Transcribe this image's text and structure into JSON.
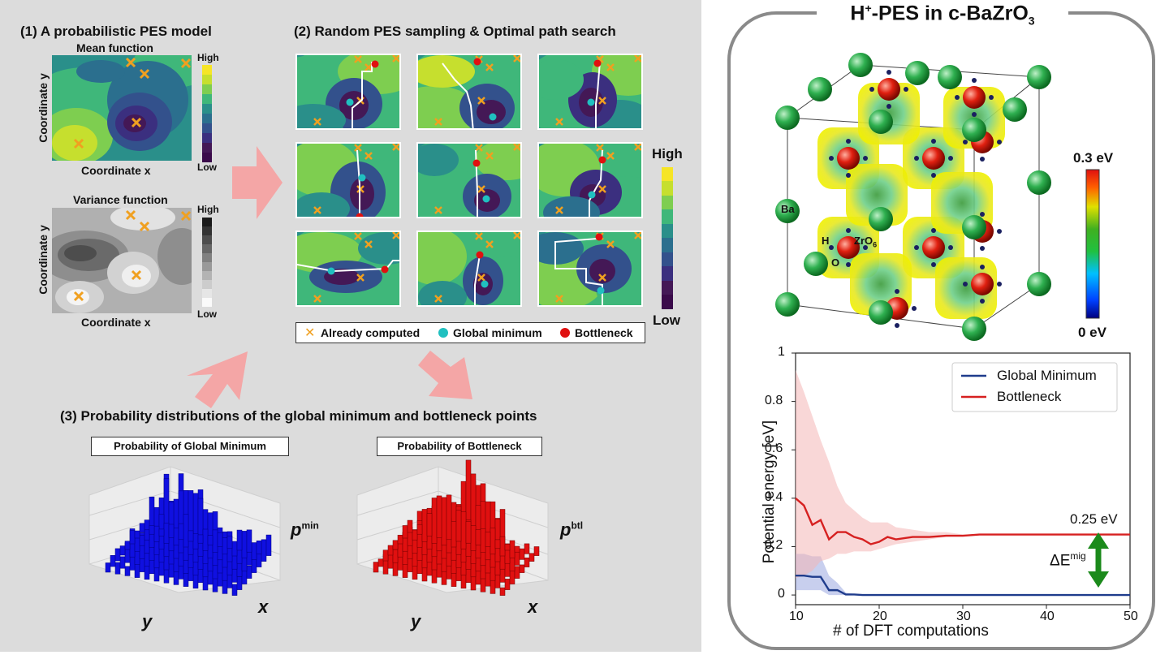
{
  "panel1": {
    "heading": "(1) A probabilistic PES model",
    "mean": {
      "title": "Mean function",
      "xlabel": "Coordinate x",
      "ylabel": "Coordinate y",
      "cb_high": "High",
      "cb_low": "Low"
    },
    "variance": {
      "title": "Variance function",
      "xlabel": "Coordinate x",
      "ylabel": "Coordinate y",
      "cb_high": "High",
      "cb_low": "Low"
    }
  },
  "panel2": {
    "heading": "(2) Random PES sampling & Optimal path search",
    "cb_high": "High",
    "cb_low": "Low",
    "legend": {
      "computed": "Already computed",
      "global_min": "Global minimum",
      "bottleneck": "Bottleneck"
    }
  },
  "panel3": {
    "heading": "(3) Probability distributions of the global minimum and bottleneck points",
    "gm_title": "Probability of Global Minimum",
    "bn_title": "Probability of Bottleneck",
    "gm_axis": {
      "x": "x",
      "y": "y",
      "z_base": "p",
      "z_sup": "min"
    },
    "bn_axis": {
      "x": "x",
      "y": "y",
      "z_base": "p",
      "z_sup": "btl"
    }
  },
  "right": {
    "title_main": "H",
    "title_sup": "+",
    "title_mid": "-PES in c-BaZrO",
    "title_sub": "3",
    "cs_high": "0.3 eV",
    "cs_low": "0 eV",
    "labels": {
      "ba": "Ba",
      "h": "H",
      "zro": "ZrO",
      "zro_sub": "6",
      "o": "O"
    }
  },
  "chart_data": {
    "type": "line",
    "title": "",
    "xlabel": "# of DFT computations",
    "ylabel": "Potential energy [eV]",
    "xlim": [
      10,
      50
    ],
    "ylim": [
      -0.04,
      1.0
    ],
    "xticks": [
      "10",
      "20",
      "30",
      "40",
      "50"
    ],
    "yticks": [
      "0",
      "0.2",
      "0.4",
      "0.6",
      "0.8",
      "1"
    ],
    "series": [
      {
        "name": "Global Minimum",
        "color": "#1f3c8c",
        "band_color": "#9aa8e0",
        "x": [
          10,
          11,
          12,
          13,
          14,
          15,
          16,
          17,
          18,
          19,
          20,
          25,
          30,
          40,
          50
        ],
        "values": [
          0.08,
          0.08,
          0.075,
          0.075,
          0.02,
          0.02,
          0.002,
          0.002,
          0.0,
          0.0,
          0.0,
          0.0,
          0.0,
          0.0,
          0.0
        ],
        "upper": [
          0.17,
          0.17,
          0.16,
          0.16,
          0.08,
          0.05,
          0.01,
          0.005,
          0.0,
          0.0,
          0.0,
          0.0,
          0.0,
          0.0,
          0.0
        ],
        "lower": [
          0.02,
          0.02,
          0.02,
          0.02,
          0.0,
          0.0,
          0.0,
          0.0,
          0.0,
          0.0,
          0.0,
          0.0,
          0.0,
          0.0,
          0.0
        ]
      },
      {
        "name": "Bottleneck",
        "color": "#d62020",
        "band_color": "#f4b6b6",
        "x": [
          10,
          11,
          12,
          13,
          14,
          15,
          16,
          17,
          18,
          19,
          20,
          21,
          22,
          24,
          26,
          28,
          30,
          32,
          40,
          50
        ],
        "values": [
          0.4,
          0.37,
          0.29,
          0.31,
          0.23,
          0.26,
          0.26,
          0.24,
          0.23,
          0.21,
          0.22,
          0.24,
          0.23,
          0.24,
          0.24,
          0.245,
          0.245,
          0.25,
          0.25,
          0.25
        ],
        "upper": [
          0.93,
          0.84,
          0.74,
          0.64,
          0.55,
          0.45,
          0.38,
          0.35,
          0.32,
          0.3,
          0.3,
          0.3,
          0.28,
          0.27,
          0.26,
          0.26,
          0.25,
          0.25,
          0.25,
          0.25
        ],
        "lower": [
          0.07,
          0.08,
          0.1,
          0.14,
          0.15,
          0.17,
          0.17,
          0.18,
          0.18,
          0.18,
          0.19,
          0.2,
          0.21,
          0.22,
          0.23,
          0.24,
          0.245,
          0.25,
          0.25,
          0.25
        ]
      }
    ],
    "annotations": {
      "value": "0.25 eV",
      "delta_base": "ΔE",
      "delta_sup": "mig"
    },
    "legend": [
      "Global Minimum",
      "Bottleneck"
    ]
  }
}
